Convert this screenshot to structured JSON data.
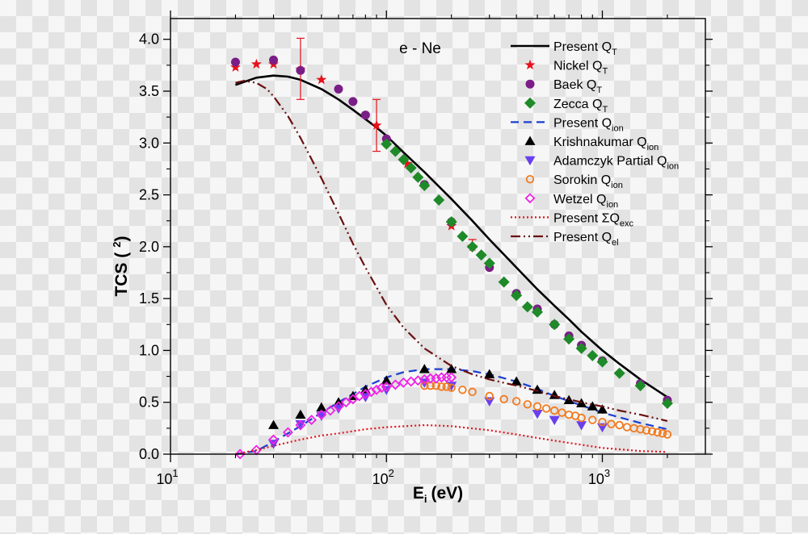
{
  "chart_data": {
    "type": "scatter",
    "annotation": "e - Ne",
    "xlabel": "E",
    "xlabel_sub": "i",
    "xlabel_unit": "(eV)",
    "ylabel": "TCS (",
    "ylabel_sup": "2",
    "ylabel_end": ")",
    "xscale": "log",
    "xlim": [
      10,
      3000
    ],
    "ylim": [
      0,
      4.2
    ],
    "x_ticks": [
      {
        "base": "10",
        "exp": "1",
        "value": 10
      },
      {
        "base": "10",
        "exp": "2",
        "value": 100
      },
      {
        "base": "10",
        "exp": "3",
        "value": 1000
      }
    ],
    "y_ticks": [
      "0.0",
      "0.5",
      "1.0",
      "1.5",
      "2.0",
      "2.5",
      "3.0",
      "3.5",
      "4.0"
    ],
    "legend_position": "top-right",
    "series": [
      {
        "name": "Present Q",
        "sub": "T",
        "kind": "line",
        "dash": "solid",
        "color": "#000000",
        "x": [
          20,
          25,
          30,
          35,
          40,
          50,
          60,
          70,
          80,
          90,
          100,
          120,
          150,
          200,
          250,
          300,
          400,
          500,
          600,
          700,
          800,
          1000,
          1200,
          1500,
          2000
        ],
        "y": [
          3.56,
          3.63,
          3.65,
          3.64,
          3.61,
          3.52,
          3.42,
          3.32,
          3.23,
          3.15,
          3.07,
          2.91,
          2.72,
          2.46,
          2.25,
          2.07,
          1.8,
          1.59,
          1.43,
          1.3,
          1.18,
          1.0,
          0.87,
          0.72,
          0.55
        ]
      },
      {
        "name": "Nickel Q",
        "sub": "T",
        "kind": "marker",
        "marker": "star",
        "color": "#e8101a",
        "x": [
          20,
          25,
          30,
          40,
          50,
          90,
          125,
          200,
          250
        ],
        "y": [
          3.73,
          3.76,
          3.76,
          3.71,
          3.61,
          3.17,
          2.8,
          2.2,
          2.0
        ],
        "error_bars": [
          {
            "x": 40,
            "low": 3.42,
            "high": 4.01
          },
          {
            "x": 90,
            "low": 2.92,
            "high": 3.42
          },
          {
            "x": 250,
            "low": 2.0,
            "high": 2.07
          }
        ]
      },
      {
        "name": "Baek Q",
        "sub": "T",
        "kind": "marker",
        "marker": "circle",
        "color": "#7b1d87",
        "x": [
          20,
          30,
          40,
          60,
          70,
          80,
          100,
          150,
          200,
          300,
          400,
          500,
          600,
          700,
          800,
          1000,
          1500,
          2000
        ],
        "y": [
          3.78,
          3.8,
          3.7,
          3.52,
          3.4,
          3.27,
          3.04,
          2.6,
          2.24,
          1.8,
          1.55,
          1.4,
          1.25,
          1.14,
          1.05,
          0.9,
          0.68,
          0.52
        ]
      },
      {
        "name": "Zecca Q",
        "sub": "T",
        "kind": "marker",
        "marker": "diamond",
        "color": "#1e8a28",
        "x": [
          100,
          110,
          120,
          130,
          140,
          150,
          175,
          200,
          225,
          250,
          275,
          300,
          350,
          400,
          450,
          500,
          600,
          700,
          800,
          900,
          1000,
          1200,
          1500,
          2000
        ],
        "y": [
          2.99,
          2.92,
          2.84,
          2.76,
          2.67,
          2.59,
          2.45,
          2.24,
          2.1,
          2.0,
          1.92,
          1.84,
          1.66,
          1.53,
          1.42,
          1.37,
          1.25,
          1.11,
          1.02,
          0.95,
          0.89,
          0.78,
          0.66,
          0.49
        ]
      },
      {
        "name": "Present Q",
        "sub": "ion",
        "kind": "line",
        "dash": "dash",
        "color": "#1a3fd1",
        "x": [
          20,
          25,
          30,
          40,
          50,
          60,
          70,
          80,
          100,
          120,
          150,
          200,
          250,
          300,
          400,
          500,
          600,
          800,
          1000,
          1500,
          2000
        ],
        "y": [
          0.0,
          0.03,
          0.12,
          0.27,
          0.4,
          0.5,
          0.58,
          0.65,
          0.74,
          0.79,
          0.82,
          0.82,
          0.8,
          0.77,
          0.7,
          0.63,
          0.56,
          0.47,
          0.4,
          0.3,
          0.24
        ]
      },
      {
        "name": "Krishnakumar Q",
        "sub": "ion",
        "kind": "marker",
        "marker": "triangle-up",
        "color": "#000000",
        "x": [
          30,
          40,
          50,
          60,
          70,
          80,
          100,
          150,
          200,
          300,
          400,
          500,
          600,
          700,
          800,
          900,
          1000
        ],
        "y": [
          0.28,
          0.38,
          0.45,
          0.5,
          0.56,
          0.62,
          0.71,
          0.82,
          0.82,
          0.77,
          0.7,
          0.62,
          0.57,
          0.52,
          0.49,
          0.46,
          0.43
        ]
      },
      {
        "name": "Adamczyk Partial Q",
        "sub": "ion",
        "kind": "marker",
        "marker": "triangle-down",
        "color": "#6a3ff0",
        "x": [
          30,
          40,
          50,
          60,
          80,
          100,
          150,
          200,
          300,
          500,
          600,
          800,
          1000
        ],
        "y": [
          0.1,
          0.29,
          0.37,
          0.44,
          0.55,
          0.62,
          0.69,
          0.66,
          0.51,
          0.39,
          0.33,
          0.28,
          0.26
        ]
      },
      {
        "name": "Sorokin Q",
        "sub": "ion",
        "kind": "marker",
        "marker": "circle-open",
        "color": "#f27a1e",
        "x": [
          150,
          160,
          170,
          180,
          190,
          200,
          225,
          250,
          300,
          350,
          400,
          450,
          500,
          550,
          600,
          650,
          700,
          750,
          800,
          900,
          1000,
          1100,
          1200,
          1300,
          1400,
          1500,
          1600,
          1700,
          1800,
          1900,
          2000
        ],
        "y": [
          0.66,
          0.66,
          0.66,
          0.65,
          0.65,
          0.64,
          0.62,
          0.6,
          0.56,
          0.53,
          0.51,
          0.48,
          0.46,
          0.44,
          0.42,
          0.4,
          0.38,
          0.37,
          0.35,
          0.33,
          0.31,
          0.29,
          0.28,
          0.26,
          0.25,
          0.24,
          0.23,
          0.22,
          0.21,
          0.2,
          0.19
        ]
      },
      {
        "name": "Wetzel Q",
        "sub": "ion",
        "kind": "marker",
        "marker": "diamond-open",
        "color": "#ee22e6",
        "x": [
          21,
          25,
          30,
          35,
          40,
          45,
          50,
          55,
          60,
          65,
          70,
          75,
          80,
          85,
          90,
          95,
          100,
          110,
          120,
          130,
          140,
          150,
          160,
          170,
          180,
          190,
          200
        ],
        "y": [
          0.0,
          0.04,
          0.14,
          0.21,
          0.28,
          0.33,
          0.38,
          0.42,
          0.46,
          0.5,
          0.53,
          0.56,
          0.58,
          0.6,
          0.62,
          0.64,
          0.65,
          0.67,
          0.69,
          0.7,
          0.71,
          0.72,
          0.73,
          0.73,
          0.74,
          0.74,
          0.74
        ]
      },
      {
        "name": "Present ΣQ",
        "sub": "exc",
        "kind": "line",
        "dash": "dot",
        "color": "#e8101a",
        "x": [
          20,
          25,
          30,
          40,
          50,
          60,
          80,
          100,
          150,
          200,
          300,
          400,
          600,
          800,
          1000,
          1500,
          2000
        ],
        "y": [
          0.0,
          0.04,
          0.08,
          0.14,
          0.18,
          0.2,
          0.24,
          0.26,
          0.28,
          0.27,
          0.23,
          0.19,
          0.13,
          0.09,
          0.06,
          0.03,
          0.02
        ]
      },
      {
        "name": "Present Q",
        "sub": "el",
        "kind": "line",
        "dash": "dashdotdot",
        "color": "#6b0f10",
        "x": [
          20,
          22,
          25,
          28,
          30,
          35,
          40,
          50,
          60,
          70,
          80,
          100,
          120,
          150,
          200,
          250,
          300,
          400,
          500,
          600,
          800,
          1000,
          1200,
          1500,
          2000
        ],
        "y": [
          3.58,
          3.6,
          3.58,
          3.52,
          3.45,
          3.26,
          3.05,
          2.66,
          2.32,
          2.03,
          1.8,
          1.44,
          1.22,
          1.02,
          0.85,
          0.77,
          0.72,
          0.66,
          0.61,
          0.56,
          0.5,
          0.46,
          0.42,
          0.38,
          0.32
        ]
      }
    ]
  }
}
